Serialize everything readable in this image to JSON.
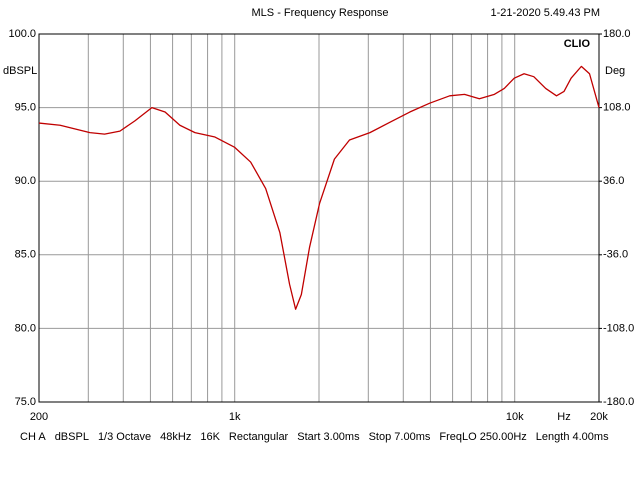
{
  "chart_data": {
    "type": "line",
    "title": "MLS - Frequency Response",
    "timestamp": "1-21-2020 5.49.43 PM",
    "brand": "CLIO",
    "ylabel": "dBSPL",
    "y2label": "Deg",
    "xlabel": "Hz",
    "log_x": true,
    "grid": true,
    "xlim": [
      200,
      20000
    ],
    "xticks": [
      200,
      {
        "value": 1000,
        "label": "1k"
      },
      {
        "value": 10000,
        "label": "10k"
      },
      {
        "value": 20000,
        "label": "20k"
      }
    ],
    "x_minor_ticks": [
      300,
      400,
      500,
      600,
      700,
      800,
      900,
      2000,
      3000,
      4000,
      5000,
      6000,
      7000,
      8000,
      9000
    ],
    "ylim": [
      75,
      100
    ],
    "yticks": [
      {
        "value": 75,
        "label": "75.0"
      },
      {
        "value": 80,
        "label": "80.0"
      },
      {
        "value": 85,
        "label": "85.0"
      },
      {
        "value": 90,
        "label": "90.0"
      },
      {
        "value": 95,
        "label": "95.0"
      },
      {
        "value": 100,
        "label": "100.0"
      }
    ],
    "y2lim": [
      -180,
      180
    ],
    "y2ticks": [
      {
        "value": -180,
        "label": "-180.0"
      },
      {
        "value": -108,
        "label": "-108.0"
      },
      {
        "value": -36,
        "label": "-36.0"
      },
      {
        "value": 36,
        "label": "36.0"
      },
      {
        "value": 108,
        "label": "108.0"
      },
      {
        "value": 180,
        "label": "180.0"
      }
    ],
    "x": [
      200,
      238,
      304,
      343,
      389,
      440,
      506,
      564,
      637,
      721,
      850,
      1000,
      1140,
      1290,
      1450,
      1570,
      1650,
      1730,
      1850,
      2010,
      2270,
      2570,
      3040,
      3580,
      4220,
      4970,
      5860,
      6620,
      7480,
      8460,
      9180,
      9960,
      10800,
      11700,
      12900,
      14100,
      15000,
      15900,
      17300,
      18500,
      20000
    ],
    "series": [
      {
        "color": "#c00000",
        "values": [
          93.95,
          93.8,
          93.3,
          93.2,
          93.4,
          94.1,
          95.0,
          94.7,
          93.8,
          93.3,
          93.0,
          92.3,
          91.3,
          89.5,
          86.5,
          83.0,
          81.3,
          82.3,
          85.5,
          88.5,
          91.5,
          92.8,
          93.3,
          94.0,
          94.7,
          95.3,
          95.8,
          95.9,
          95.6,
          95.9,
          96.3,
          97.0,
          97.3,
          97.1,
          96.3,
          95.8,
          96.1,
          97.0,
          97.8,
          97.3,
          95.0
        ]
      }
    ],
    "footer": [
      "CH A",
      "dBSPL",
      "1/3 Octave",
      "48kHz",
      "16K",
      "Rectangular",
      "Start 3.00ms",
      "Stop 7.00ms",
      "FreqLO 250.00Hz",
      "Length 4.00ms"
    ]
  }
}
